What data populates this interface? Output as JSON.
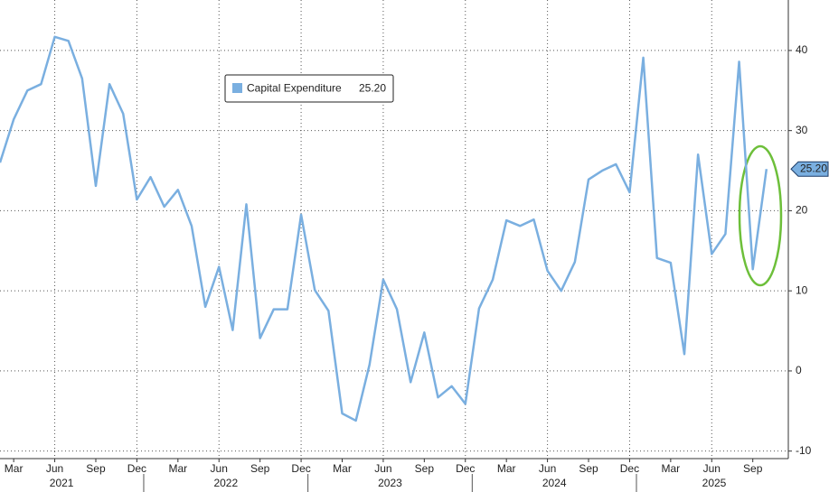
{
  "chart_data": {
    "type": "line",
    "categories": [
      null,
      "Mar",
      null,
      null,
      "Jun",
      null,
      null,
      "Sep",
      null,
      null,
      "Dec",
      null,
      null,
      "Mar",
      null,
      null,
      "Jun",
      null,
      null,
      "Sep",
      null,
      null,
      "Dec",
      null,
      null,
      "Mar",
      null,
      null,
      "Jun",
      null,
      null,
      "Sep",
      null,
      null,
      "Dec",
      null,
      null,
      "Mar",
      null,
      null,
      "Jun",
      null,
      null,
      "Sep",
      null,
      null,
      "Dec",
      null,
      null,
      "Mar",
      null,
      null,
      "Jun",
      null,
      null,
      "Sep",
      null
    ],
    "years": [
      "2021",
      "2022",
      "2023",
      "2024",
      "2025"
    ],
    "series": [
      {
        "name": "Capital Expenditure",
        "color": "#7aafe0",
        "last_label": "25.20",
        "values": [
          26.0,
          31.4,
          35.0,
          35.8,
          41.7,
          41.2,
          36.5,
          23.1,
          35.8,
          32.1,
          21.4,
          24.2,
          20.5,
          22.6,
          18.1,
          8.0,
          13.0,
          5.1,
          20.8,
          4.1,
          7.7,
          7.7,
          19.5,
          10.1,
          7.5,
          -5.3,
          -6.2,
          0.8,
          11.4,
          7.7,
          -1.4,
          4.8,
          -3.3,
          -1.9,
          -4.1,
          7.8,
          11.4,
          18.8,
          18.1,
          18.9,
          12.5,
          10.0,
          13.6,
          23.9,
          25.0,
          25.8,
          22.3,
          39.1,
          14.1,
          13.5,
          2.1,
          27.0,
          14.6,
          17.1,
          38.6,
          12.7,
          25.2
        ]
      }
    ],
    "ylim": [
      -10.6,
      46.3
    ],
    "yticks": [
      -10,
      0,
      10,
      20,
      30,
      40
    ],
    "grid": true
  }
}
